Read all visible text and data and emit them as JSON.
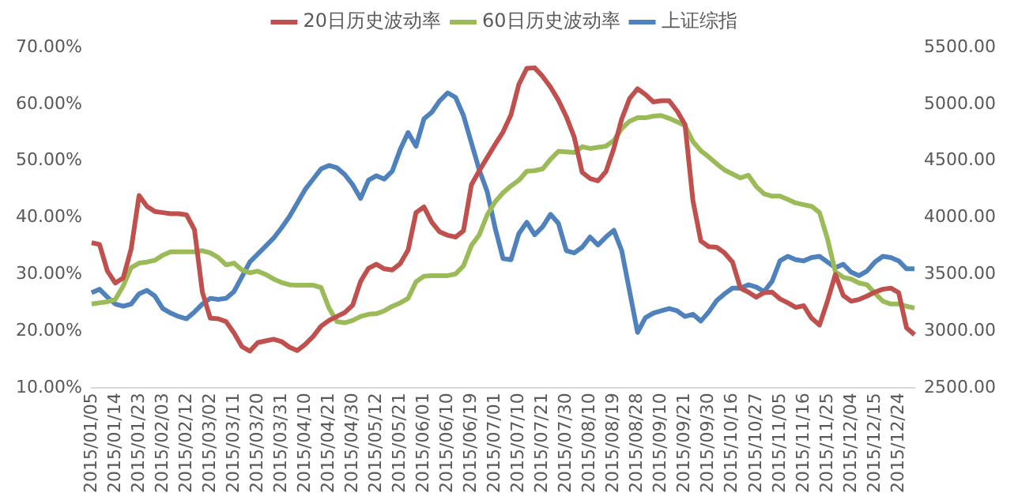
{
  "chart_data": {
    "type": "line",
    "legend": "top",
    "marker": "none",
    "line_style": "solid",
    "categories": [
      "2015/01/05",
      null,
      null,
      "2015/01/14",
      null,
      null,
      "2015/01/23",
      null,
      null,
      "2015/02/03",
      null,
      null,
      "2015/02/12",
      null,
      null,
      "2015/03/02",
      null,
      null,
      "2015/03/11",
      null,
      null,
      "2015/03/20",
      null,
      null,
      "2015/03/31",
      null,
      null,
      "2015/04/10",
      null,
      null,
      "2015/04/21",
      null,
      null,
      "2015/04/30",
      null,
      null,
      "2015/05/12",
      null,
      null,
      "2015/05/21",
      null,
      null,
      "2015/06/01",
      null,
      null,
      "2015/06/10",
      null,
      null,
      "2015/06/19",
      null,
      null,
      "2015/07/01",
      null,
      null,
      "2015/07/10",
      null,
      null,
      "2015/07/21",
      null,
      null,
      "2015/07/30",
      null,
      null,
      "2015/08/10",
      null,
      null,
      "2015/08/19",
      null,
      null,
      "2015/08/28",
      null,
      null,
      "2015/09/10",
      null,
      null,
      "2015/09/21",
      null,
      null,
      "2015/09/30",
      null,
      null,
      "2015/10/16",
      null,
      null,
      "2015/10/27",
      null,
      null,
      "2015/11/05",
      null,
      null,
      "2015/11/16",
      null,
      null,
      "2015/11/25",
      null,
      null,
      "2015/12/04",
      null,
      null,
      "2015/12/15",
      null,
      null,
      "2015/12/24",
      null,
      null
    ],
    "ylim": [
      10,
      70
    ],
    "yticks": [
      {
        "value": 10,
        "label": "10.00%"
      },
      {
        "value": 20,
        "label": "20.00%"
      },
      {
        "value": 30,
        "label": "30.00%"
      },
      {
        "value": 40,
        "label": "40.00%"
      },
      {
        "value": 50,
        "label": "50.00%"
      },
      {
        "value": 60,
        "label": "60.00%"
      },
      {
        "value": 70,
        "label": "70.00%"
      }
    ],
    "y2lim": [
      2500,
      5500
    ],
    "y2ticks": [
      {
        "value": 2500,
        "label": "2500.00"
      },
      {
        "value": 3000,
        "label": "3000.00"
      },
      {
        "value": 3500,
        "label": "3500.00"
      },
      {
        "value": 4000,
        "label": "4000.00"
      },
      {
        "value": 4500,
        "label": "4500.00"
      },
      {
        "value": 5000,
        "label": "5000.00"
      },
      {
        "value": 5500,
        "label": "5500.00"
      }
    ],
    "grid": false,
    "series": [
      {
        "name": "20日历史波动率",
        "color": "#c0504d",
        "values": [
          35.6,
          35.3,
          30.6,
          28.5,
          29.4,
          34.5,
          43.9,
          42,
          41.1,
          40.9,
          40.7,
          40.7,
          40.5,
          37.9,
          26.9,
          22.3,
          22.2,
          21.7,
          19.7,
          17.3,
          16.5,
          18.0,
          18.3,
          18.6,
          18.2,
          17.2,
          16.6,
          17.7,
          19.1,
          20.9,
          21.9,
          22.6,
          23.3,
          24.6,
          28.8,
          31.1,
          31.8,
          31.0,
          30.8,
          31.9,
          34.3,
          40.9,
          41.9,
          39.2,
          37.5,
          36.9,
          36.6,
          37.7,
          45.8,
          48.3,
          50.6,
          52.9,
          55.1,
          58.1,
          63.5,
          66.3,
          66.4,
          64.9,
          63.0,
          60.7,
          57.8,
          54.2,
          48.0,
          46.9,
          46.5,
          48.1,
          52.2,
          57.4,
          61.0,
          62.7,
          61.7,
          60.4,
          60.6,
          60.6,
          58.8,
          56.4,
          43.0,
          35.9,
          34.9,
          34.8,
          33.8,
          32.2,
          27.6,
          26.9,
          26.0,
          26.8,
          26.9,
          25.7,
          25.0,
          24.2,
          24.5,
          22.3,
          21.1,
          25.3,
          30.0,
          26.3,
          25.3,
          25.6,
          26.2,
          26.9,
          27.4,
          27.6,
          26.8,
          20.6,
          19.4
        ]
      },
      {
        "name": "60日历史波动率",
        "color": "#9bbb59",
        "values": [
          24.8,
          25.0,
          25.2,
          25.6,
          28.0,
          31.2,
          32.0,
          32.2,
          32.5,
          33.4,
          34.0,
          34.0,
          34.0,
          34.0,
          34.2,
          33.8,
          33.0,
          31.7,
          32.0,
          30.8,
          30.3,
          30.6,
          30.0,
          29.2,
          28.6,
          28.2,
          28.1,
          28.1,
          28.1,
          27.7,
          24.1,
          21.7,
          21.5,
          21.9,
          22.6,
          23.0,
          23.1,
          23.6,
          24.4,
          25.0,
          25.8,
          28.7,
          29.7,
          29.8,
          29.8,
          29.8,
          30.1,
          31.5,
          35.1,
          37.0,
          40.5,
          42.8,
          44.4,
          45.6,
          46.6,
          48.2,
          48.3,
          48.6,
          50.3,
          51.7,
          51.6,
          51.5,
          52.5,
          52.2,
          52.4,
          52.6,
          53.6,
          55.7,
          57.0,
          57.6,
          57.6,
          57.9,
          58.0,
          57.5,
          56.9,
          56.2,
          53.4,
          51.8,
          50.7,
          49.5,
          48.4,
          47.7,
          47.0,
          47.5,
          45.5,
          44.2,
          43.8,
          43.8,
          43.2,
          42.6,
          42.3,
          42.0,
          40.9,
          36.3,
          30.5,
          29.5,
          29.2,
          28.5,
          28.2,
          26.7,
          25.3,
          24.8,
          24.8,
          24.4,
          24.1
        ]
      },
      {
        "name": "上证综指",
        "color": "#4f81bd",
        "axis": "y2",
        "values": [
          3340,
          3370,
          3300,
          3240,
          3220,
          3240,
          3330,
          3360,
          3310,
          3200,
          3160,
          3130,
          3110,
          3170,
          3240,
          3290,
          3280,
          3290,
          3350,
          3480,
          3610,
          3680,
          3750,
          3820,
          3910,
          4010,
          4130,
          4250,
          4340,
          4430,
          4460,
          4440,
          4380,
          4290,
          4170,
          4330,
          4370,
          4340,
          4410,
          4600,
          4750,
          4630,
          4870,
          4930,
          5030,
          5100,
          5060,
          4900,
          4660,
          4420,
          4230,
          3910,
          3640,
          3630,
          3860,
          3960,
          3850,
          3920,
          4030,
          3950,
          3710,
          3690,
          3740,
          3830,
          3760,
          3830,
          3890,
          3710,
          3350,
          2990,
          3120,
          3160,
          3180,
          3200,
          3180,
          3130,
          3150,
          3090,
          3170,
          3270,
          3330,
          3380,
          3380,
          3410,
          3390,
          3350,
          3440,
          3620,
          3660,
          3630,
          3620,
          3650,
          3660,
          3610,
          3560,
          3590,
          3520,
          3490,
          3530,
          3610,
          3660,
          3650,
          3620,
          3550,
          3550
        ]
      }
    ]
  }
}
